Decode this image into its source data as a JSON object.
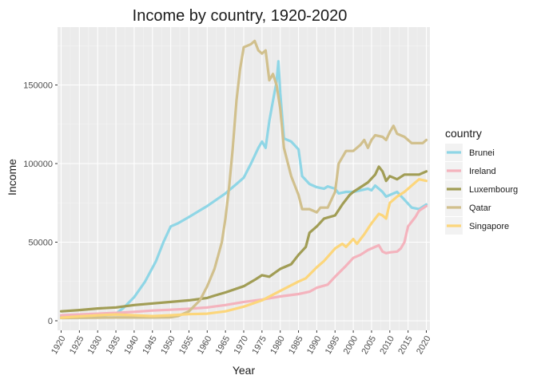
{
  "chart_data": {
    "type": "line",
    "title": "Income by country, 1920-2020",
    "xlabel": "Year",
    "ylabel": "Income",
    "xlim": [
      1920,
      2020
    ],
    "ylim": [
      0,
      180000
    ],
    "x_ticks": [
      1920,
      1925,
      1930,
      1935,
      1940,
      1945,
      1950,
      1955,
      1960,
      1965,
      1970,
      1975,
      1980,
      1985,
      1990,
      1995,
      2000,
      2005,
      2010,
      2015,
      2020
    ],
    "x_tick_labels": [
      "1920",
      "1925",
      "1930",
      "1935",
      "1940",
      "1945",
      "1950",
      "1955",
      "1960",
      "1965",
      "1970",
      "1975",
      "1980",
      "1985",
      "1990",
      "1995",
      "2000",
      "2005",
      "2010",
      "2015",
      "2020"
    ],
    "y_ticks": [
      0,
      50000,
      100000,
      150000
    ],
    "y_tick_labels": [
      "0",
      "50000",
      "100000",
      "150000"
    ],
    "grid": true,
    "background": "#ebebeb",
    "legend": {
      "title": "country",
      "position": "right"
    },
    "series": [
      {
        "name": "Brunei",
        "color": "#8fd6e6",
        "points": [
          [
            1920,
            2500
          ],
          [
            1925,
            2700
          ],
          [
            1930,
            3000
          ],
          [
            1935,
            4500
          ],
          [
            1937,
            8000
          ],
          [
            1940,
            15000
          ],
          [
            1943,
            25000
          ],
          [
            1946,
            38000
          ],
          [
            1948,
            50000
          ],
          [
            1950,
            60000
          ],
          [
            1952,
            62000
          ],
          [
            1955,
            66000
          ],
          [
            1960,
            73000
          ],
          [
            1965,
            81000
          ],
          [
            1968,
            87000
          ],
          [
            1970,
            91000
          ],
          [
            1972,
            100000
          ],
          [
            1974,
            110000
          ],
          [
            1975,
            114000
          ],
          [
            1976,
            110000
          ],
          [
            1977,
            127000
          ],
          [
            1978,
            140000
          ],
          [
            1979,
            152000
          ],
          [
            1979.5,
            165000
          ],
          [
            1980,
            145000
          ],
          [
            1981,
            116000
          ],
          [
            1983,
            114000
          ],
          [
            1985,
            109000
          ],
          [
            1986,
            92000
          ],
          [
            1988,
            87000
          ],
          [
            1990,
            85000
          ],
          [
            1992,
            84000
          ],
          [
            1993,
            85500
          ],
          [
            1995,
            84000
          ],
          [
            1996,
            81000
          ],
          [
            1998,
            82000
          ],
          [
            2000,
            82000
          ],
          [
            2002,
            83000
          ],
          [
            2004,
            84000
          ],
          [
            2005,
            83000
          ],
          [
            2006,
            86000
          ],
          [
            2007,
            84000
          ],
          [
            2008,
            82000
          ],
          [
            2009,
            79000
          ],
          [
            2010,
            80000
          ],
          [
            2012,
            82000
          ],
          [
            2014,
            77000
          ],
          [
            2016,
            72000
          ],
          [
            2018,
            71000
          ],
          [
            2020,
            74000
          ]
        ]
      },
      {
        "name": "Ireland",
        "color": "#f4b3bd",
        "points": [
          [
            1920,
            3500
          ],
          [
            1925,
            4000
          ],
          [
            1930,
            4500
          ],
          [
            1935,
            5000
          ],
          [
            1940,
            5700
          ],
          [
            1945,
            6500
          ],
          [
            1950,
            7000
          ],
          [
            1955,
            7600
          ],
          [
            1960,
            8500
          ],
          [
            1965,
            10000
          ],
          [
            1970,
            12000
          ],
          [
            1975,
            13500
          ],
          [
            1980,
            15500
          ],
          [
            1985,
            17000
          ],
          [
            1988,
            18500
          ],
          [
            1990,
            21000
          ],
          [
            1993,
            23000
          ],
          [
            1995,
            28000
          ],
          [
            1998,
            35000
          ],
          [
            2000,
            40000
          ],
          [
            2002,
            42000
          ],
          [
            2004,
            45000
          ],
          [
            2006,
            47000
          ],
          [
            2007,
            48000
          ],
          [
            2008,
            44000
          ],
          [
            2009,
            43000
          ],
          [
            2010,
            43500
          ],
          [
            2012,
            44000
          ],
          [
            2013,
            46000
          ],
          [
            2014,
            50000
          ],
          [
            2015,
            60000
          ],
          [
            2016,
            63000
          ],
          [
            2017,
            66000
          ],
          [
            2018,
            70000
          ],
          [
            2020,
            73000
          ]
        ]
      },
      {
        "name": "Luxembourg",
        "color": "#a19d55",
        "points": [
          [
            1920,
            6000
          ],
          [
            1925,
            6800
          ],
          [
            1930,
            7800
          ],
          [
            1935,
            8500
          ],
          [
            1940,
            10000
          ],
          [
            1945,
            11000
          ],
          [
            1950,
            12000
          ],
          [
            1955,
            13000
          ],
          [
            1960,
            14500
          ],
          [
            1962,
            16000
          ],
          [
            1965,
            18000
          ],
          [
            1970,
            22000
          ],
          [
            1973,
            26000
          ],
          [
            1975,
            29000
          ],
          [
            1977,
            28000
          ],
          [
            1980,
            33000
          ],
          [
            1983,
            36000
          ],
          [
            1985,
            42000
          ],
          [
            1987,
            47000
          ],
          [
            1988,
            56000
          ],
          [
            1990,
            60000
          ],
          [
            1992,
            65000
          ],
          [
            1995,
            67000
          ],
          [
            1997,
            74000
          ],
          [
            1999,
            80000
          ],
          [
            2000,
            82000
          ],
          [
            2002,
            85000
          ],
          [
            2004,
            88000
          ],
          [
            2006,
            93000
          ],
          [
            2007,
            98000
          ],
          [
            2008,
            95000
          ],
          [
            2009,
            89000
          ],
          [
            2010,
            92000
          ],
          [
            2011,
            91000
          ],
          [
            2012,
            90000
          ],
          [
            2014,
            93000
          ],
          [
            2016,
            93000
          ],
          [
            2018,
            93000
          ],
          [
            2020,
            95000
          ]
        ]
      },
      {
        "name": "Qatar",
        "color": "#d1c08d",
        "points": [
          [
            1920,
            1800
          ],
          [
            1925,
            1900
          ],
          [
            1930,
            2000
          ],
          [
            1935,
            2100
          ],
          [
            1940,
            2100
          ],
          [
            1945,
            2100
          ],
          [
            1950,
            2200
          ],
          [
            1952,
            3000
          ],
          [
            1955,
            6000
          ],
          [
            1958,
            13000
          ],
          [
            1960,
            22000
          ],
          [
            1962,
            33000
          ],
          [
            1964,
            50000
          ],
          [
            1965,
            65000
          ],
          [
            1966,
            85000
          ],
          [
            1967,
            110000
          ],
          [
            1968,
            140000
          ],
          [
            1969,
            160000
          ],
          [
            1970,
            174000
          ],
          [
            1971,
            175000
          ],
          [
            1972,
            176000
          ],
          [
            1973,
            178000
          ],
          [
            1974,
            172000
          ],
          [
            1975,
            170000
          ],
          [
            1976,
            172000
          ],
          [
            1977,
            153000
          ],
          [
            1978,
            157000
          ],
          [
            1979,
            150000
          ],
          [
            1980,
            135000
          ],
          [
            1981,
            110000
          ],
          [
            1983,
            92000
          ],
          [
            1985,
            80000
          ],
          [
            1986,
            71000
          ],
          [
            1988,
            71000
          ],
          [
            1990,
            69000
          ],
          [
            1991,
            72000
          ],
          [
            1993,
            72000
          ],
          [
            1995,
            82000
          ],
          [
            1996,
            100000
          ],
          [
            1998,
            108000
          ],
          [
            2000,
            108000
          ],
          [
            2002,
            112000
          ],
          [
            2003,
            115000
          ],
          [
            2004,
            110000
          ],
          [
            2005,
            115000
          ],
          [
            2006,
            118000
          ],
          [
            2008,
            117000
          ],
          [
            2009,
            115000
          ],
          [
            2010,
            120000
          ],
          [
            2011,
            124000
          ],
          [
            2012,
            119000
          ],
          [
            2014,
            117000
          ],
          [
            2016,
            113000
          ],
          [
            2018,
            113000
          ],
          [
            2019,
            113000
          ],
          [
            2020,
            115000
          ]
        ]
      },
      {
        "name": "Singapore",
        "color": "#fcd67b",
        "points": [
          [
            1920,
            2000
          ],
          [
            1925,
            2800
          ],
          [
            1930,
            3500
          ],
          [
            1935,
            4000
          ],
          [
            1940,
            3500
          ],
          [
            1945,
            3000
          ],
          [
            1950,
            3500
          ],
          [
            1955,
            4200
          ],
          [
            1960,
            4500
          ],
          [
            1965,
            6000
          ],
          [
            1970,
            9000
          ],
          [
            1975,
            13000
          ],
          [
            1980,
            19000
          ],
          [
            1985,
            25000
          ],
          [
            1987,
            27000
          ],
          [
            1990,
            34000
          ],
          [
            1992,
            38000
          ],
          [
            1995,
            46000
          ],
          [
            1997,
            49000
          ],
          [
            1998,
            47000
          ],
          [
            2000,
            52000
          ],
          [
            2001,
            49000
          ],
          [
            2003,
            55000
          ],
          [
            2005,
            62000
          ],
          [
            2007,
            68000
          ],
          [
            2008,
            67000
          ],
          [
            2009,
            65000
          ],
          [
            2010,
            75000
          ],
          [
            2012,
            79000
          ],
          [
            2014,
            82000
          ],
          [
            2016,
            86000
          ],
          [
            2018,
            90000
          ],
          [
            2020,
            89000
          ]
        ]
      }
    ]
  }
}
